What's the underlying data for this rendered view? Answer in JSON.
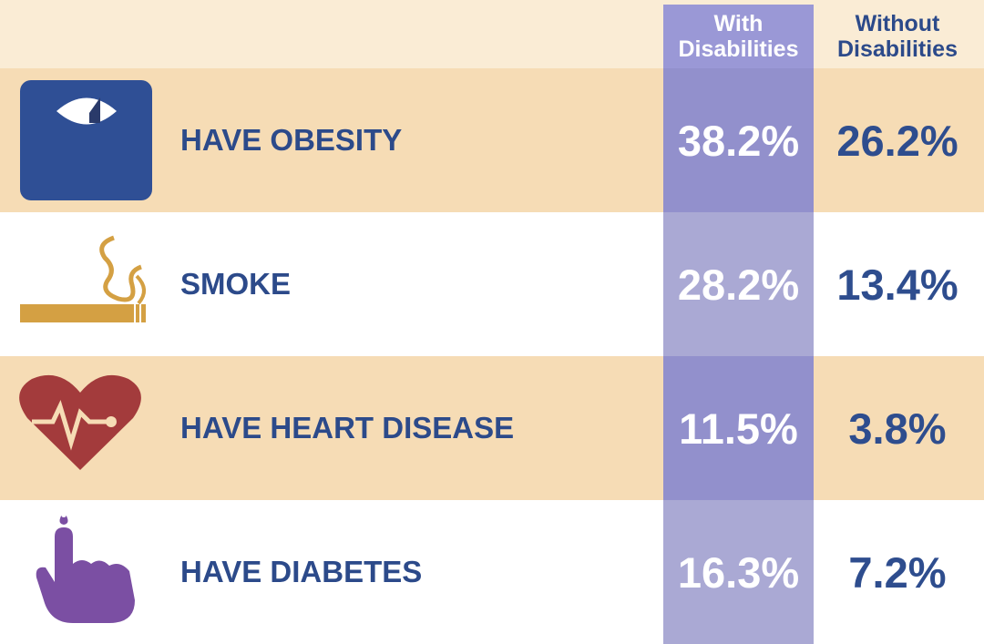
{
  "table": {
    "columns": [
      "With Disabilities",
      "Without Disabilities"
    ],
    "rows": [
      {
        "label": "HAVE OBESITY",
        "with": "38.2%",
        "without": "26.2%"
      },
      {
        "label": "SMOKE",
        "with": "28.2%",
        "without": "13.4%"
      },
      {
        "label": "HAVE HEART DISEASE",
        "with": "11.5%",
        "without": "3.8%"
      },
      {
        "label": "HAVE DIABETES",
        "with": "16.3%",
        "without": "7.2%"
      }
    ]
  }
}
